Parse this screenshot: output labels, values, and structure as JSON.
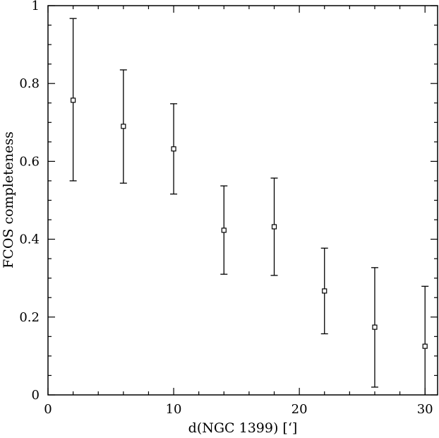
{
  "chart_data": {
    "type": "scatter",
    "xlabel": "d(NGC 1399) [‘]",
    "ylabel": "FCOS completeness",
    "xlim": [
      0,
      31
    ],
    "ylim": [
      0,
      1
    ],
    "x_ticks": [
      0,
      10,
      20,
      30
    ],
    "y_ticks": [
      0,
      0.2,
      0.4,
      0.6,
      0.8,
      1
    ],
    "x_tick_labels": [
      "0",
      "10",
      "20",
      "30"
    ],
    "y_tick_labels": [
      "0",
      "0.2",
      "0.4",
      "0.6",
      "0.8",
      "1"
    ],
    "grid": false,
    "marker": "open-square",
    "series": [
      {
        "x": [
          2,
          6,
          10,
          14,
          18,
          22,
          26,
          30
        ],
        "y": [
          0.757,
          0.69,
          0.632,
          0.423,
          0.432,
          0.267,
          0.174,
          0.125
        ],
        "y_low": [
          0.55,
          0.544,
          0.516,
          0.31,
          0.307,
          0.157,
          0.02,
          0.0
        ],
        "y_high": [
          0.967,
          0.835,
          0.748,
          0.537,
          0.557,
          0.377,
          0.327,
          0.279
        ]
      }
    ]
  }
}
